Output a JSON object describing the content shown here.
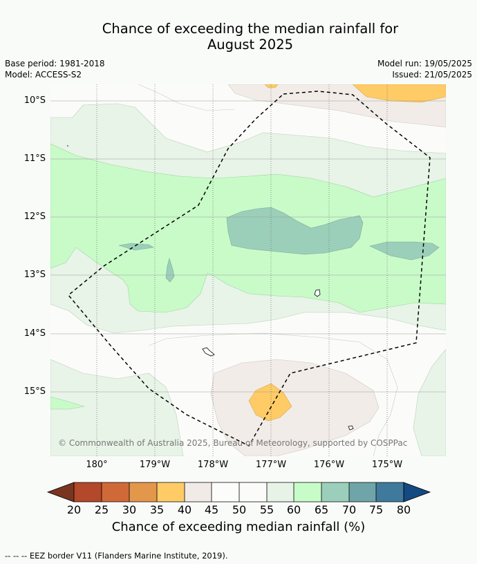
{
  "title_line1": "Chance of exceeding the median rainfall for",
  "title_line2": "August 2025",
  "base_period": "Base period: 1981-2018",
  "model": "Model: ACCESS-S2",
  "model_run": "Model run: 19/05/2025",
  "issued": "Issued: 21/05/2025",
  "lat_labels": [
    "10°S",
    "11°S",
    "12°S",
    "13°S",
    "14°S",
    "15°S"
  ],
  "lon_labels": [
    "180°",
    "179°W",
    "178°W",
    "177°W",
    "176°W",
    "175°W"
  ],
  "copyright": "© Commonwealth of Australia 2025, Bureau of Meteorology, supported by COSPPac",
  "colorbar": {
    "ticks": [
      "20",
      "25",
      "30",
      "35",
      "40",
      "45",
      "50",
      "55",
      "60",
      "65",
      "70",
      "75",
      "80"
    ],
    "colors": [
      "#7a3520",
      "#b3482a",
      "#cf6a38",
      "#e3974b",
      "#fecb66",
      "#f0ebe6",
      "#fcfcfb",
      "#fbfcfa",
      "#e6f3e6",
      "#c7fbc7",
      "#9bcfbb",
      "#6fa5a8",
      "#3f7a9d",
      "#144a82"
    ],
    "label": "Chance of exceeding median rainfall (%)"
  },
  "footnote": "--  --  -- EEZ border V11 (Flanders Marine Institute, 2019)."
}
